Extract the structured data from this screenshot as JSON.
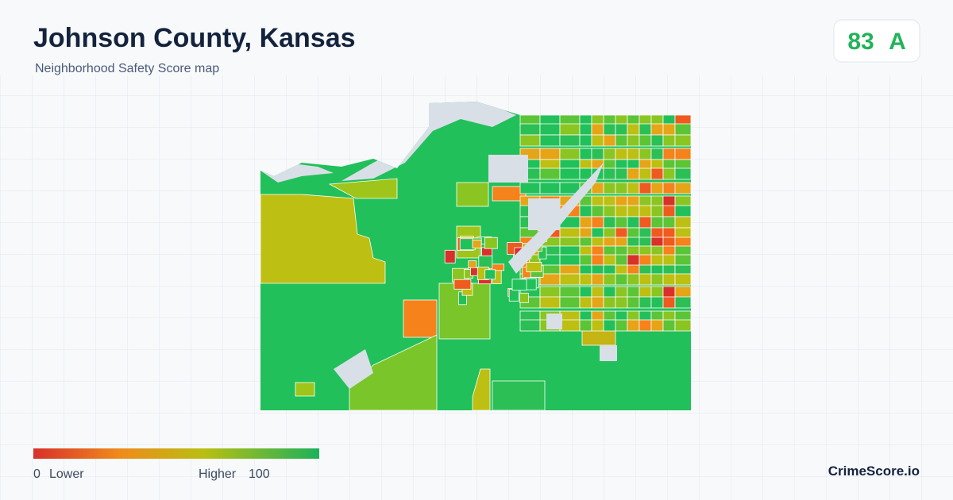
{
  "header": {
    "title": "Johnson County, Kansas",
    "subtitle": "Neighborhood Safety Score map"
  },
  "score": {
    "value": 83,
    "grade": "A"
  },
  "legend": {
    "min": 0,
    "min_label": "Lower",
    "max_label": "Higher",
    "max": 100
  },
  "brand": "CrimeScore.io"
}
